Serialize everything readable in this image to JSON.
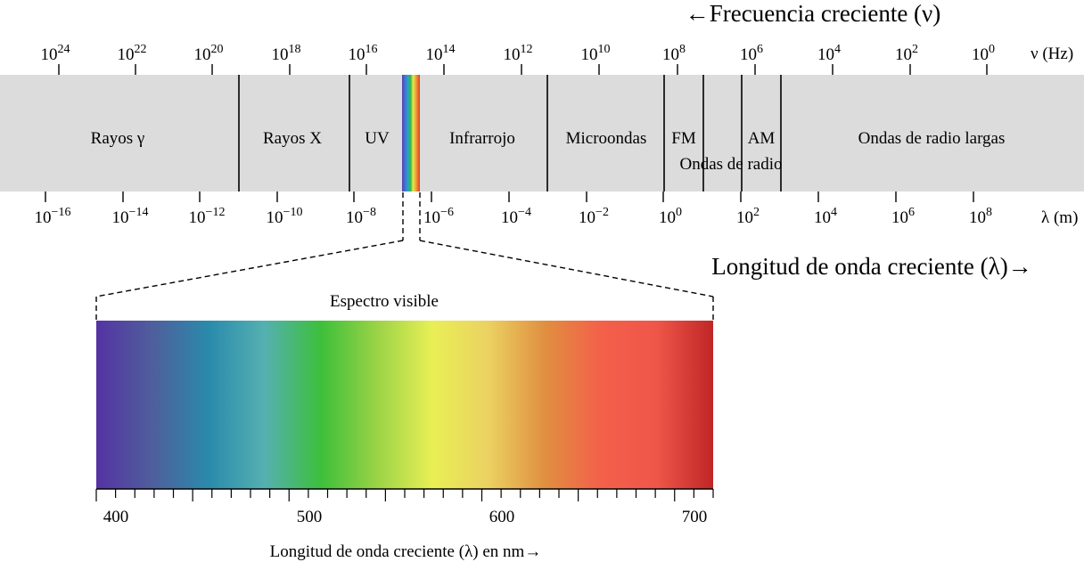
{
  "titles": {
    "frequency_heading": "←Frecuencia creciente (ν)",
    "wavelength_heading": "Longitud de onda creciente (λ)→",
    "frequency_unit": "ν (Hz)",
    "wavelength_unit": "λ (m)",
    "visible_title": "Espectro visible",
    "visible_axis_label": "Longitud de onda creciente (λ) en nm→"
  },
  "frequency_ticks": [
    {
      "base": "10",
      "exp": "24"
    },
    {
      "base": "10",
      "exp": "22"
    },
    {
      "base": "10",
      "exp": "20"
    },
    {
      "base": "10",
      "exp": "18"
    },
    {
      "base": "10",
      "exp": "16"
    },
    {
      "base": "10",
      "exp": "14"
    },
    {
      "base": "10",
      "exp": "12"
    },
    {
      "base": "10",
      "exp": "10"
    },
    {
      "base": "10",
      "exp": "8"
    },
    {
      "base": "10",
      "exp": "6"
    },
    {
      "base": "10",
      "exp": "4"
    },
    {
      "base": "10",
      "exp": "2"
    },
    {
      "base": "10",
      "exp": "0"
    }
  ],
  "wavelength_ticks": [
    {
      "base": "10",
      "exp": "−16"
    },
    {
      "base": "10",
      "exp": "−14"
    },
    {
      "base": "10",
      "exp": "−12"
    },
    {
      "base": "10",
      "exp": "−10"
    },
    {
      "base": "10",
      "exp": "−8"
    },
    {
      "base": "10",
      "exp": "−6"
    },
    {
      "base": "10",
      "exp": "−4"
    },
    {
      "base": "10",
      "exp": "−2"
    },
    {
      "base": "10",
      "exp": "0"
    },
    {
      "base": "10",
      "exp": "2"
    },
    {
      "base": "10",
      "exp": "4"
    },
    {
      "base": "10",
      "exp": "6"
    },
    {
      "base": "10",
      "exp": "8"
    }
  ],
  "bands": [
    {
      "label": "Rayos γ"
    },
    {
      "label": "Rayos X"
    },
    {
      "label": "UV"
    },
    {
      "label": "Infrarrojo"
    },
    {
      "label": "Microondas"
    },
    {
      "label": "FM"
    },
    {
      "label": "AM"
    },
    {
      "label": "Ondas de radio largas"
    }
  ],
  "radio_label": "Ondas de radio",
  "visible_ticks": [
    {
      "label": "400"
    },
    {
      "label": "500"
    },
    {
      "label": "600"
    },
    {
      "label": "700"
    }
  ],
  "colors": {
    "band_background": "#dcdcdc",
    "visible_gradient": [
      "#5533a3",
      "#4f5e9c",
      "#2a8aac",
      "#55b0b0",
      "#3dbf3b",
      "#9ad346",
      "#e9ef55",
      "#ebd162",
      "#e08f40",
      "#f4604a",
      "#ef5649",
      "#c02626"
    ]
  }
}
